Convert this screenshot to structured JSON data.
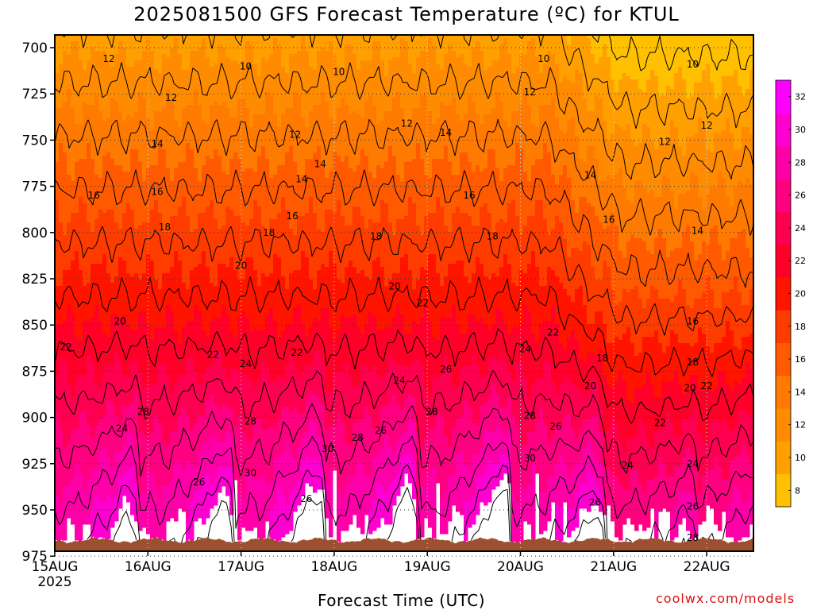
{
  "title": "2025081500 GFS Forecast Temperature (ºC) for KTUL",
  "xlabel": "Forecast Time (UTC)",
  "credit": "coolwx.com/models",
  "chart_data": {
    "type": "heatmap",
    "title": "2025081500 GFS Forecast Temperature (ºC) for KTUL",
    "xlabel": "Forecast Time (UTC)",
    "ylabel": "",
    "x_ticks": [
      "15AUG",
      "16AUG",
      "17AUG",
      "18AUG",
      "19AUG",
      "20AUG",
      "21AUG",
      "22AUG"
    ],
    "x_year": "2025",
    "xlim_days": [
      0,
      7.5
    ],
    "y_ticks": [
      700,
      725,
      750,
      775,
      800,
      825,
      850,
      875,
      900,
      925,
      950,
      975
    ],
    "ylim": [
      697,
      987
    ],
    "y_inverted": true,
    "grid": true,
    "colorbar": {
      "ticks": [
        8,
        10,
        12,
        14,
        16,
        18,
        20,
        22,
        24,
        26,
        28,
        30,
        32
      ],
      "levels": [
        7,
        9,
        11,
        13,
        15,
        17,
        19,
        21,
        23,
        25,
        27,
        29,
        31,
        33
      ],
      "colors": [
        "#ffc000",
        "#ffa000",
        "#ff8c00",
        "#ff7a00",
        "#ff5a00",
        "#ff3c00",
        "#ff1400",
        "#ff0028",
        "#ff0050",
        "#ff0080",
        "#ff00a8",
        "#ff00d0",
        "#ff00ff"
      ],
      "placement": "right"
    },
    "ground_color": "#9c5030",
    "contour_labels": [
      {
        "v": "12",
        "t": 0.58,
        "p": 706
      },
      {
        "v": "12",
        "t": 1.25,
        "p": 727
      },
      {
        "v": "14",
        "t": 1.1,
        "p": 752
      },
      {
        "v": "16",
        "t": 1.1,
        "p": 778
      },
      {
        "v": "16",
        "t": 0.42,
        "p": 780
      },
      {
        "v": "18",
        "t": 1.18,
        "p": 797
      },
      {
        "v": "20",
        "t": 0.7,
        "p": 848
      },
      {
        "v": "22",
        "t": 0.12,
        "p": 862
      },
      {
        "v": "24",
        "t": 0.72,
        "p": 906
      },
      {
        "v": "28",
        "t": 0.95,
        "p": 897
      },
      {
        "v": "10",
        "t": 2.05,
        "p": 710
      },
      {
        "v": "12",
        "t": 2.58,
        "p": 747
      },
      {
        "v": "14",
        "t": 2.65,
        "p": 771
      },
      {
        "v": "16",
        "t": 2.55,
        "p": 791
      },
      {
        "v": "18",
        "t": 2.3,
        "p": 800
      },
      {
        "v": "20",
        "t": 2.0,
        "p": 818
      },
      {
        "v": "22",
        "t": 1.7,
        "p": 866
      },
      {
        "v": "24",
        "t": 2.05,
        "p": 871
      },
      {
        "v": "28",
        "t": 2.1,
        "p": 902
      },
      {
        "v": "30",
        "t": 2.1,
        "p": 930
      },
      {
        "v": "26",
        "t": 1.55,
        "p": 935
      },
      {
        "v": "10",
        "t": 3.05,
        "p": 713
      },
      {
        "v": "12",
        "t": 3.78,
        "p": 741
      },
      {
        "v": "14",
        "t": 2.85,
        "p": 763
      },
      {
        "v": "18",
        "t": 3.45,
        "p": 802
      },
      {
        "v": "20",
        "t": 3.65,
        "p": 829
      },
      {
        "v": "22",
        "t": 2.6,
        "p": 865
      },
      {
        "v": "24",
        "t": 3.7,
        "p": 880
      },
      {
        "v": "28",
        "t": 3.25,
        "p": 911
      },
      {
        "v": "30",
        "t": 2.93,
        "p": 917
      },
      {
        "v": "26",
        "t": 3.5,
        "p": 907
      },
      {
        "v": "26",
        "t": 2.7,
        "p": 944
      },
      {
        "v": "14",
        "t": 4.2,
        "p": 746
      },
      {
        "v": "16",
        "t": 4.45,
        "p": 780
      },
      {
        "v": "18",
        "t": 4.7,
        "p": 802
      },
      {
        "v": "22",
        "t": 3.95,
        "p": 838
      },
      {
        "v": "26",
        "t": 4.2,
        "p": 874
      },
      {
        "v": "28",
        "t": 4.05,
        "p": 897
      },
      {
        "v": "10",
        "t": 5.25,
        "p": 706
      },
      {
        "v": "12",
        "t": 5.1,
        "p": 724
      },
      {
        "v": "24",
        "t": 5.05,
        "p": 863
      },
      {
        "v": "22",
        "t": 5.35,
        "p": 854
      },
      {
        "v": "28",
        "t": 5.1,
        "p": 899
      },
      {
        "v": "30",
        "t": 5.1,
        "p": 922
      },
      {
        "v": "26",
        "t": 5.38,
        "p": 905
      },
      {
        "v": "14",
        "t": 5.75,
        "p": 769
      },
      {
        "v": "16",
        "t": 5.95,
        "p": 793
      },
      {
        "v": "18",
        "t": 5.88,
        "p": 868
      },
      {
        "v": "20",
        "t": 5.75,
        "p": 883
      },
      {
        "v": "24",
        "t": 6.15,
        "p": 926
      },
      {
        "v": "26",
        "t": 5.8,
        "p": 946
      },
      {
        "v": "22",
        "t": 6.5,
        "p": 903
      },
      {
        "v": "10",
        "t": 6.85,
        "p": 709
      },
      {
        "v": "12",
        "t": 6.55,
        "p": 751
      },
      {
        "v": "12",
        "t": 7.0,
        "p": 742
      },
      {
        "v": "14",
        "t": 6.9,
        "p": 799
      },
      {
        "v": "16",
        "t": 6.85,
        "p": 848
      },
      {
        "v": "18",
        "t": 6.85,
        "p": 870
      },
      {
        "v": "20",
        "t": 6.82,
        "p": 884
      },
      {
        "v": "22",
        "t": 7.0,
        "p": 883
      },
      {
        "v": "24",
        "t": 6.85,
        "p": 925
      },
      {
        "v": "26",
        "t": 6.85,
        "p": 948
      },
      {
        "v": "28",
        "t": 6.85,
        "p": 965
      }
    ]
  }
}
